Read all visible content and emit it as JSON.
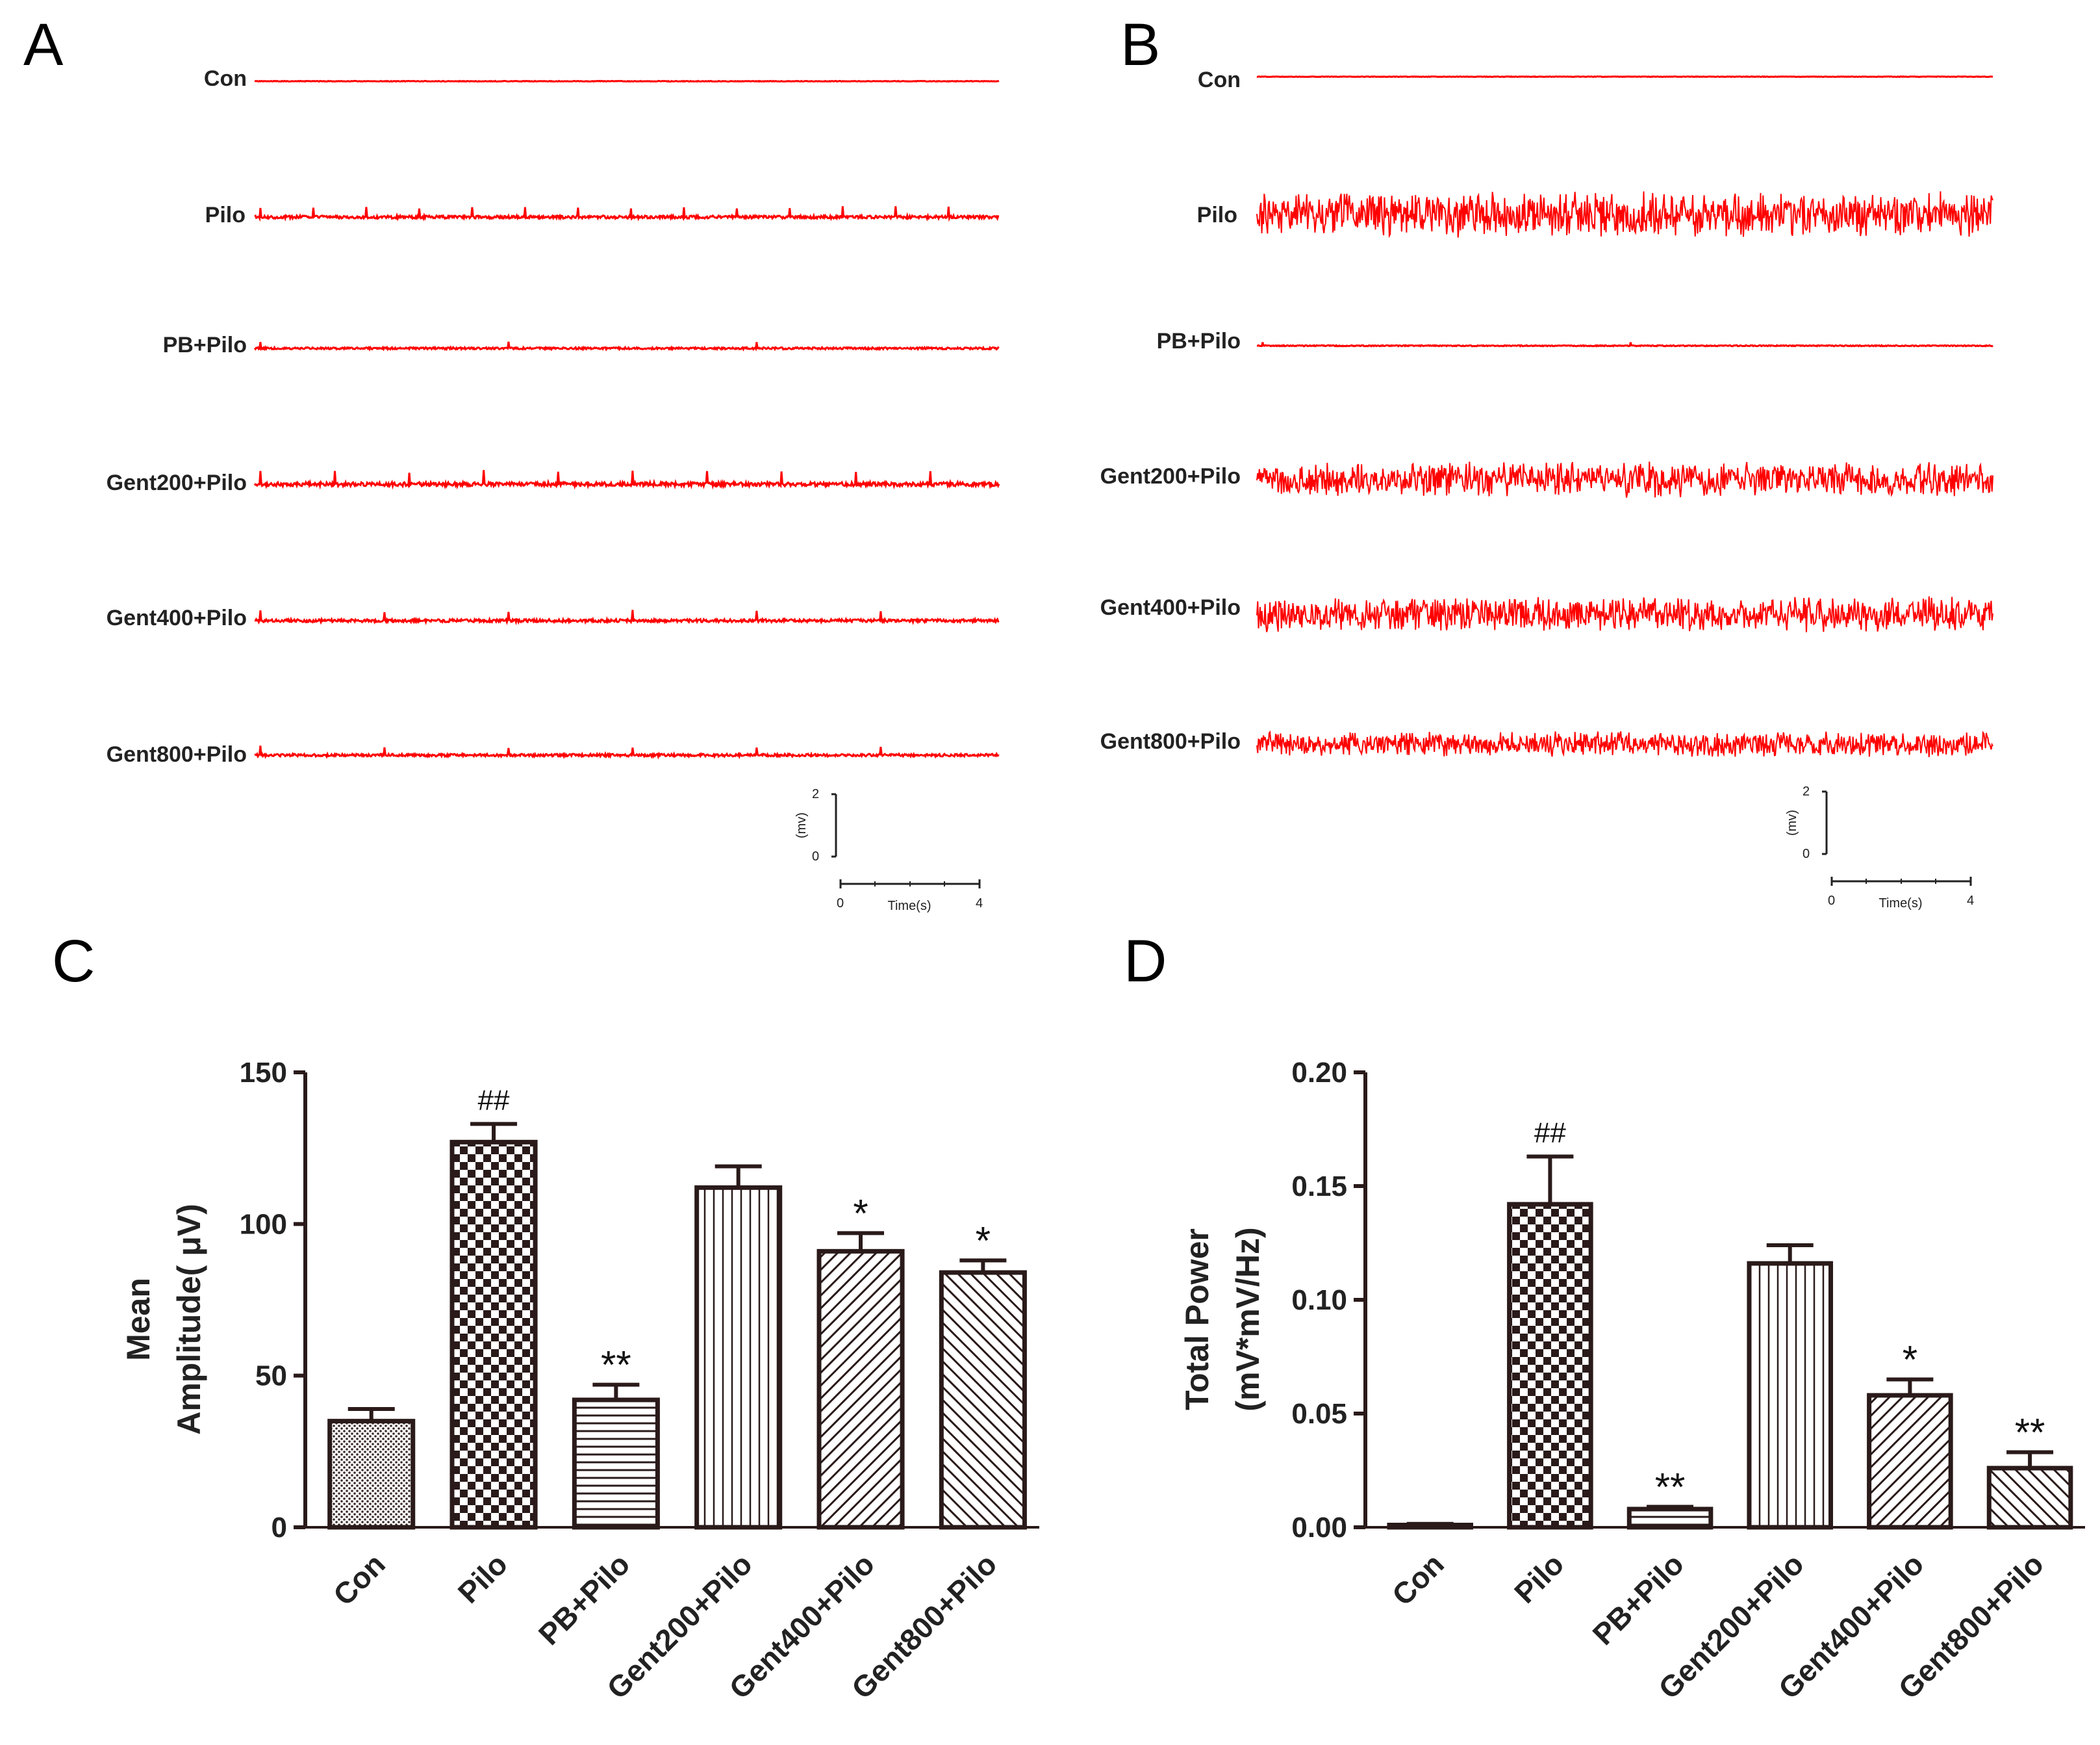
{
  "panels": {
    "A": {
      "letter": "A",
      "traces": [
        "Con",
        "Pilo",
        "PB+Pilo",
        "Gent200+Pilo",
        "Gent400+Pilo",
        "Gent800+Pilo"
      ],
      "scale_bar": {
        "y_unit": "(mv)",
        "y_min": "0",
        "y_max": "2",
        "x_label": "Time(s)",
        "x_min": "0",
        "x_max": "4"
      }
    },
    "B": {
      "letter": "B",
      "traces": [
        "Con",
        "Pilo",
        "PB+Pilo",
        "Gent200+Pilo",
        "Gent400+Pilo",
        "Gent800+Pilo"
      ],
      "scale_bar": {
        "y_unit": "(mv)",
        "y_min": "0",
        "y_max": "2",
        "x_label": "Time(s)",
        "x_min": "0",
        "x_max": "4"
      }
    },
    "C": {
      "letter": "C"
    },
    "D": {
      "letter": "D"
    }
  },
  "trace_color": "#ff0000",
  "chart_data": [
    {
      "id": "C",
      "type": "bar",
      "title": "",
      "xlabel": "",
      "ylabel_lines": [
        "Mean",
        "Amplitude( μV)"
      ],
      "categories": [
        "Con",
        "Pilo",
        "PB+Pilo",
        "Gent200+Pilo",
        "Gent400+Pilo",
        "Gent800+Pilo"
      ],
      "values": [
        35,
        127,
        42,
        112,
        91,
        84
      ],
      "errors": [
        4,
        6,
        5,
        7,
        6,
        4
      ],
      "annotations": [
        "",
        "##",
        "**",
        "",
        "*",
        "*"
      ],
      "patterns": [
        "dots",
        "checker",
        "hlines",
        "vlines",
        "diag-fwd",
        "diag-back"
      ],
      "ylim": [
        0,
        150
      ],
      "yticks": [
        "0",
        "50",
        "100",
        "150"
      ]
    },
    {
      "id": "D",
      "type": "bar",
      "title": "",
      "xlabel": "",
      "ylabel_lines": [
        "Total Power",
        "(mV*mV/Hz)"
      ],
      "categories": [
        "Con",
        "Pilo",
        "PB+Pilo",
        "Gent200+Pilo",
        "Gent400+Pilo",
        "Gent800+Pilo"
      ],
      "values": [
        0.001,
        0.142,
        0.008,
        0.116,
        0.058,
        0.026
      ],
      "errors": [
        0.0005,
        0.021,
        0.001,
        0.008,
        0.007,
        0.007
      ],
      "annotations": [
        "",
        "##",
        "**",
        "",
        "*",
        "**"
      ],
      "patterns": [
        "dots",
        "checker",
        "hlines",
        "vlines",
        "diag-fwd",
        "diag-back"
      ],
      "ylim": [
        0,
        0.2
      ],
      "yticks": [
        "0.00",
        "0.05",
        "0.10",
        "0.15",
        "0.20"
      ]
    }
  ]
}
